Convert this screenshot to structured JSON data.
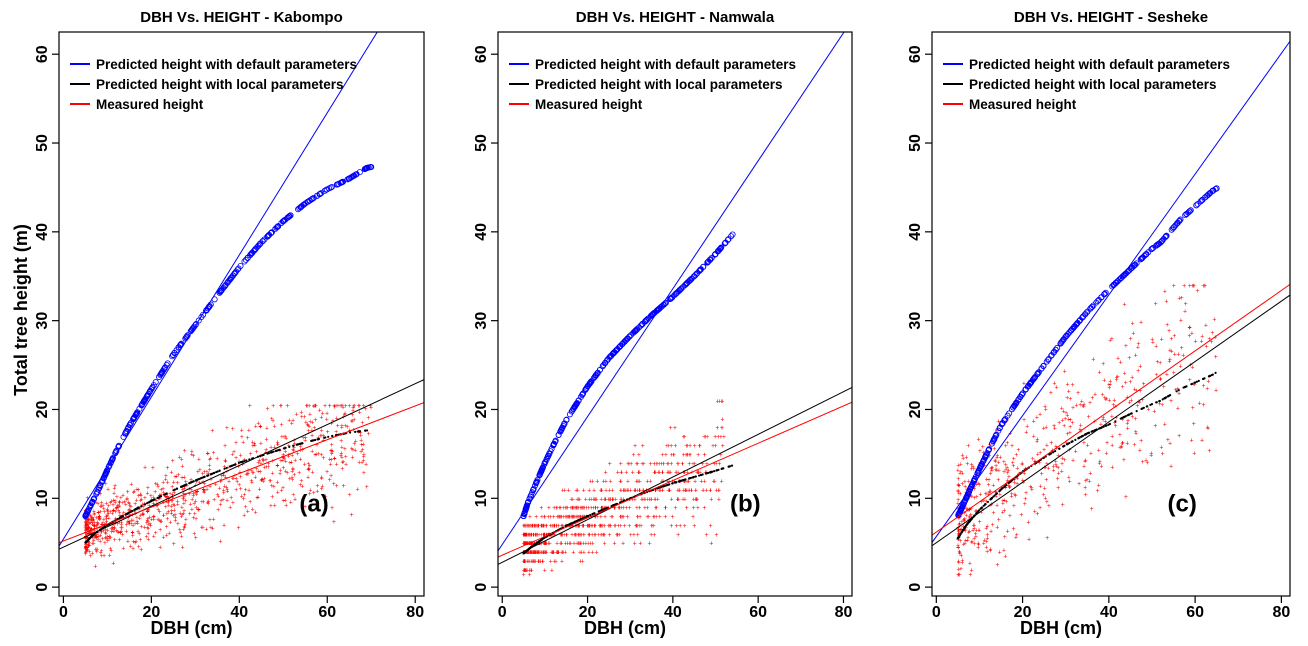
{
  "colors": {
    "default_params": "#0000ff",
    "local_params": "#000000",
    "measured": "#ff0000"
  },
  "y_axis_title": "Total tree height (m)",
  "x_axis_title": "DBH (cm)",
  "legend": [
    {
      "label": "Predicted height with default parameters",
      "color": "#0000ff"
    },
    {
      "label": "Predicted height with local parameters",
      "color": "#000000"
    },
    {
      "label": "Measured height",
      "color": "#ff0000"
    }
  ],
  "chart_data": [
    {
      "type": "scatter",
      "title": "DBH Vs. HEIGHT - Kabompo",
      "panel_label": "(a)",
      "xlabel": "DBH (cm)",
      "ylabel": "Total tree height (m)",
      "xlim": [
        -1,
        82
      ],
      "ylim": [
        -1,
        62.5
      ],
      "x_ticks": [
        0,
        20,
        40,
        60,
        80
      ],
      "y_ticks": [
        0,
        10,
        20,
        30,
        40,
        50,
        60
      ],
      "lines": [
        {
          "name": "Predicted height with default parameters",
          "color": "#0000ff",
          "intercept": 5.4,
          "slope": 0.8
        },
        {
          "name": "Predicted height with local parameters",
          "color": "#000000",
          "intercept": 4.5,
          "slope": 0.23
        },
        {
          "name": "Measured height",
          "color": "#ff0000",
          "intercept": 5.2,
          "slope": 0.19
        }
      ],
      "default_curve": {
        "x_min": 5,
        "x_max": 70,
        "points": [
          [
            5,
            8
          ],
          [
            6,
            9
          ],
          [
            8,
            11
          ],
          [
            10,
            13.2
          ],
          [
            12,
            15.3
          ],
          [
            15,
            18.2
          ],
          [
            20,
            22.3
          ],
          [
            25,
            26.2
          ],
          [
            30,
            29.5
          ],
          [
            35,
            32.8
          ],
          [
            40,
            36
          ],
          [
            45,
            38.8
          ],
          [
            50,
            41.2
          ],
          [
            55,
            43.2
          ],
          [
            60,
            44.8
          ],
          [
            63,
            45.5
          ],
          [
            65,
            46
          ],
          [
            69,
            47.2
          ],
          [
            70,
            47.3
          ]
        ]
      },
      "local_curve": {
        "x_min": 5,
        "x_max": 70,
        "points": [
          [
            5,
            5
          ],
          [
            7,
            6
          ],
          [
            10,
            7
          ],
          [
            15,
            8.4
          ],
          [
            20,
            9.7
          ],
          [
            25,
            10.9
          ],
          [
            30,
            12
          ],
          [
            35,
            13
          ],
          [
            40,
            14
          ],
          [
            45,
            14.8
          ],
          [
            50,
            15.6
          ],
          [
            55,
            16.3
          ],
          [
            60,
            16.9
          ],
          [
            65,
            17.4
          ],
          [
            70,
            17.7
          ]
        ]
      },
      "measured_cloud": {
        "x_range": [
          5,
          70
        ],
        "y_range": [
          1.5,
          20.5
        ]
      }
    },
    {
      "type": "scatter",
      "title": "DBH Vs. HEIGHT - Namwala",
      "panel_label": "(b)",
      "xlabel": "DBH (cm)",
      "ylabel": "",
      "xlim": [
        -1,
        82
      ],
      "ylim": [
        -1,
        62.5
      ],
      "x_ticks": [
        0,
        20,
        40,
        60,
        80
      ],
      "y_ticks": [
        0,
        10,
        20,
        30,
        40,
        50,
        60
      ],
      "lines": [
        {
          "name": "Predicted height with default parameters",
          "color": "#0000ff",
          "intercept": 4.8,
          "slope": 0.72
        },
        {
          "name": "Predicted height with local parameters",
          "color": "#000000",
          "intercept": 2.8,
          "slope": 0.24
        },
        {
          "name": "Measured height",
          "color": "#ff0000",
          "intercept": 3.6,
          "slope": 0.21
        }
      ],
      "default_curve": {
        "x_min": 5,
        "x_max": 54,
        "points": [
          [
            5,
            8
          ],
          [
            6,
            9.5
          ],
          [
            8,
            11.8
          ],
          [
            10,
            14
          ],
          [
            12,
            16
          ],
          [
            15,
            18.8
          ],
          [
            20,
            22.6
          ],
          [
            25,
            25.8
          ],
          [
            30,
            28.3
          ],
          [
            35,
            30.6
          ],
          [
            40,
            32.7
          ],
          [
            45,
            35
          ],
          [
            50,
            37.5
          ],
          [
            54,
            39.7
          ]
        ]
      },
      "local_curve": {
        "x_min": 5,
        "x_max": 54,
        "points": [
          [
            5,
            3.8
          ],
          [
            7,
            4.6
          ],
          [
            10,
            5.6
          ],
          [
            15,
            6.9
          ],
          [
            20,
            8
          ],
          [
            25,
            9
          ],
          [
            30,
            10
          ],
          [
            35,
            10.9
          ],
          [
            40,
            11.7
          ],
          [
            45,
            12.4
          ],
          [
            50,
            13.1
          ],
          [
            54,
            13.7
          ]
        ]
      },
      "measured_cloud": {
        "x_range": [
          5,
          52
        ],
        "y_range": [
          1.5,
          21
        ]
      }
    },
    {
      "type": "scatter",
      "title": "DBH Vs. HEIGHT - Sesheke",
      "panel_label": "(c)",
      "xlabel": "DBH (cm)",
      "ylabel": "",
      "xlim": [
        -1,
        82
      ],
      "ylim": [
        -1,
        62.5
      ],
      "x_ticks": [
        0,
        20,
        40,
        60,
        80
      ],
      "y_ticks": [
        0,
        10,
        20,
        30,
        40,
        50,
        60
      ],
      "lines": [
        {
          "name": "Predicted height with default parameters",
          "color": "#0000ff",
          "intercept": 5.7,
          "slope": 0.68
        },
        {
          "name": "Predicted height with local parameters",
          "color": "#000000",
          "intercept": 5.0,
          "slope": 0.34
        },
        {
          "name": "Measured height",
          "color": "#ff0000",
          "intercept": 6.2,
          "slope": 0.34
        }
      ],
      "default_curve": {
        "x_min": 5,
        "x_max": 65,
        "points": [
          [
            5,
            8
          ],
          [
            6,
            9
          ],
          [
            8,
            11.2
          ],
          [
            10,
            13.3
          ],
          [
            12,
            15.3
          ],
          [
            15,
            18.2
          ],
          [
            20,
            21.8
          ],
          [
            25,
            25
          ],
          [
            30,
            28.2
          ],
          [
            35,
            31
          ],
          [
            40,
            33.5
          ],
          [
            45,
            35.8
          ],
          [
            50,
            38.1
          ],
          [
            52,
            38.8
          ],
          [
            57,
            41.6
          ],
          [
            58,
            42
          ],
          [
            64,
            44.6
          ],
          [
            65,
            44.9
          ]
        ]
      },
      "local_curve": {
        "x_min": 5,
        "x_max": 65,
        "points": [
          [
            5,
            5.5
          ],
          [
            7,
            7
          ],
          [
            10,
            8.7
          ],
          [
            15,
            11
          ],
          [
            20,
            13
          ],
          [
            25,
            14.6
          ],
          [
            30,
            16
          ],
          [
            35,
            17.3
          ],
          [
            40,
            18.3
          ],
          [
            45,
            19.5
          ],
          [
            50,
            20.6
          ],
          [
            52,
            21
          ],
          [
            57,
            22.4
          ],
          [
            58,
            22.6
          ],
          [
            64,
            23.9
          ],
          [
            65,
            24.2
          ]
        ]
      },
      "measured_cloud": {
        "x_range": [
          5,
          65
        ],
        "y_range": [
          1.5,
          34
        ]
      }
    }
  ]
}
